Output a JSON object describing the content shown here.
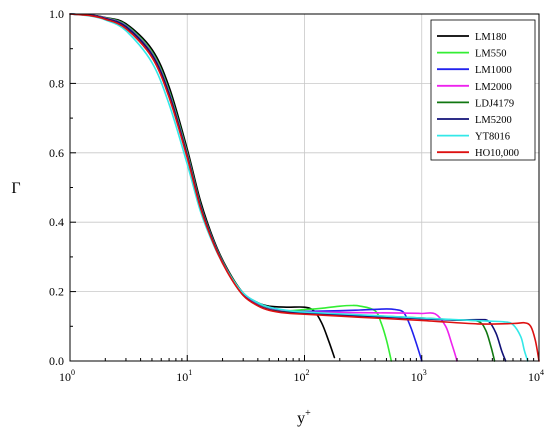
{
  "chart_data": {
    "type": "line",
    "title": "",
    "xlabel": "y",
    "xlabel_sup": "+",
    "ylabel": "Γ",
    "xscale": "log",
    "xlim": [
      1,
      10000
    ],
    "ylim": [
      0.0,
      1.0
    ],
    "grid": true,
    "legend_position": "top-right",
    "x_ticks": [
      {
        "value": 1,
        "base": "10",
        "exp": "0"
      },
      {
        "value": 10,
        "base": "10",
        "exp": "1"
      },
      {
        "value": 100,
        "base": "10",
        "exp": "2"
      },
      {
        "value": 1000,
        "base": "10",
        "exp": "3"
      },
      {
        "value": 10000,
        "base": "10",
        "exp": "4"
      }
    ],
    "y_ticks": [
      {
        "value": 0.0,
        "label": "0.0"
      },
      {
        "value": 0.2,
        "label": "0.2"
      },
      {
        "value": 0.4,
        "label": "0.4"
      },
      {
        "value": 0.6,
        "label": "0.6"
      },
      {
        "value": 0.8,
        "label": "0.8"
      },
      {
        "value": 1.0,
        "label": "1.0"
      }
    ],
    "series": [
      {
        "name": "LM180",
        "color": "#000000",
        "x": [
          1,
          1.5,
          2,
          3,
          5,
          7,
          10,
          13,
          17,
          22,
          30,
          40,
          50,
          70,
          100,
          120,
          140,
          160,
          180
        ],
        "y": [
          1.0,
          0.997,
          0.99,
          0.972,
          0.898,
          0.79,
          0.61,
          0.46,
          0.345,
          0.265,
          0.196,
          0.168,
          0.158,
          0.155,
          0.155,
          0.145,
          0.11,
          0.06,
          0.01
        ]
      },
      {
        "name": "LM550",
        "color": "#33ee33",
        "x": [
          1,
          1.5,
          2,
          3,
          5,
          7,
          10,
          13,
          17,
          22,
          30,
          40,
          50,
          70,
          100,
          150,
          200,
          250,
          300,
          400,
          450,
          500,
          550
        ],
        "y": [
          1.0,
          0.996,
          0.989,
          0.968,
          0.89,
          0.778,
          0.6,
          0.45,
          0.34,
          0.262,
          0.194,
          0.164,
          0.152,
          0.145,
          0.148,
          0.153,
          0.158,
          0.16,
          0.158,
          0.145,
          0.11,
          0.06,
          0.0
        ]
      },
      {
        "name": "LM1000",
        "color": "#2222ee",
        "x": [
          1,
          1.5,
          2,
          3,
          5,
          7,
          10,
          13,
          17,
          22,
          30,
          40,
          50,
          70,
          100,
          200,
          300,
          500,
          600,
          700,
          800,
          900,
          1000
        ],
        "y": [
          1.0,
          0.996,
          0.988,
          0.966,
          0.886,
          0.773,
          0.595,
          0.447,
          0.338,
          0.26,
          0.192,
          0.162,
          0.15,
          0.143,
          0.143,
          0.145,
          0.147,
          0.15,
          0.148,
          0.14,
          0.1,
          0.05,
          0.0
        ]
      },
      {
        "name": "LM2000",
        "color": "#ee22ee",
        "x": [
          1,
          1.5,
          2,
          3,
          5,
          7,
          10,
          13,
          17,
          22,
          30,
          40,
          50,
          70,
          100,
          200,
          400,
          700,
          1000,
          1300,
          1600,
          1800,
          2000
        ],
        "y": [
          1.0,
          0.996,
          0.988,
          0.965,
          0.885,
          0.771,
          0.593,
          0.446,
          0.337,
          0.259,
          0.191,
          0.161,
          0.149,
          0.142,
          0.141,
          0.14,
          0.139,
          0.138,
          0.137,
          0.136,
          0.1,
          0.05,
          0.0
        ]
      },
      {
        "name": "LDJ4179",
        "color": "#117711",
        "x": [
          1,
          1.5,
          2,
          3,
          5,
          7,
          10,
          13,
          17,
          22,
          30,
          40,
          50,
          70,
          100,
          300,
          1000,
          2000,
          3000,
          3500,
          3900,
          4179
        ],
        "y": [
          1.0,
          0.996,
          0.987,
          0.964,
          0.883,
          0.769,
          0.591,
          0.445,
          0.336,
          0.258,
          0.19,
          0.16,
          0.148,
          0.141,
          0.139,
          0.132,
          0.124,
          0.118,
          0.115,
          0.09,
          0.04,
          0.0
        ]
      },
      {
        "name": "LM5200",
        "color": "#111177",
        "x": [
          1,
          1.5,
          2,
          3,
          5,
          7,
          10,
          13,
          17,
          22,
          30,
          40,
          50,
          70,
          100,
          300,
          1000,
          2000,
          3000,
          3700,
          4300,
          4800,
          5200
        ],
        "y": [
          1.0,
          0.996,
          0.987,
          0.963,
          0.882,
          0.768,
          0.59,
          0.444,
          0.335,
          0.257,
          0.19,
          0.16,
          0.147,
          0.14,
          0.138,
          0.13,
          0.122,
          0.118,
          0.119,
          0.115,
          0.08,
          0.03,
          0.0
        ]
      },
      {
        "name": "YT8016",
        "color": "#33e8e8",
        "x": [
          1,
          1.5,
          2,
          3,
          5,
          7,
          10,
          13,
          17,
          22,
          30,
          40,
          50,
          70,
          100,
          300,
          1000,
          3000,
          5000,
          6000,
          7000,
          7500,
          8016
        ],
        "y": [
          1.0,
          0.994,
          0.983,
          0.952,
          0.86,
          0.74,
          0.567,
          0.43,
          0.33,
          0.258,
          0.196,
          0.168,
          0.155,
          0.146,
          0.141,
          0.133,
          0.124,
          0.116,
          0.113,
          0.105,
          0.07,
          0.03,
          0.0
        ]
      },
      {
        "name": "HO10,000",
        "color": "#dd1111",
        "x": [
          1,
          1.5,
          2,
          3,
          5,
          7,
          10,
          13,
          17,
          22,
          30,
          40,
          50,
          70,
          100,
          300,
          1000,
          3000,
          6000,
          7500,
          8500,
          9300,
          10000
        ],
        "y": [
          1.0,
          0.995,
          0.985,
          0.958,
          0.875,
          0.76,
          0.585,
          0.44,
          0.333,
          0.256,
          0.189,
          0.159,
          0.146,
          0.138,
          0.135,
          0.126,
          0.117,
          0.107,
          0.108,
          0.11,
          0.1,
          0.06,
          0.0
        ]
      }
    ]
  }
}
